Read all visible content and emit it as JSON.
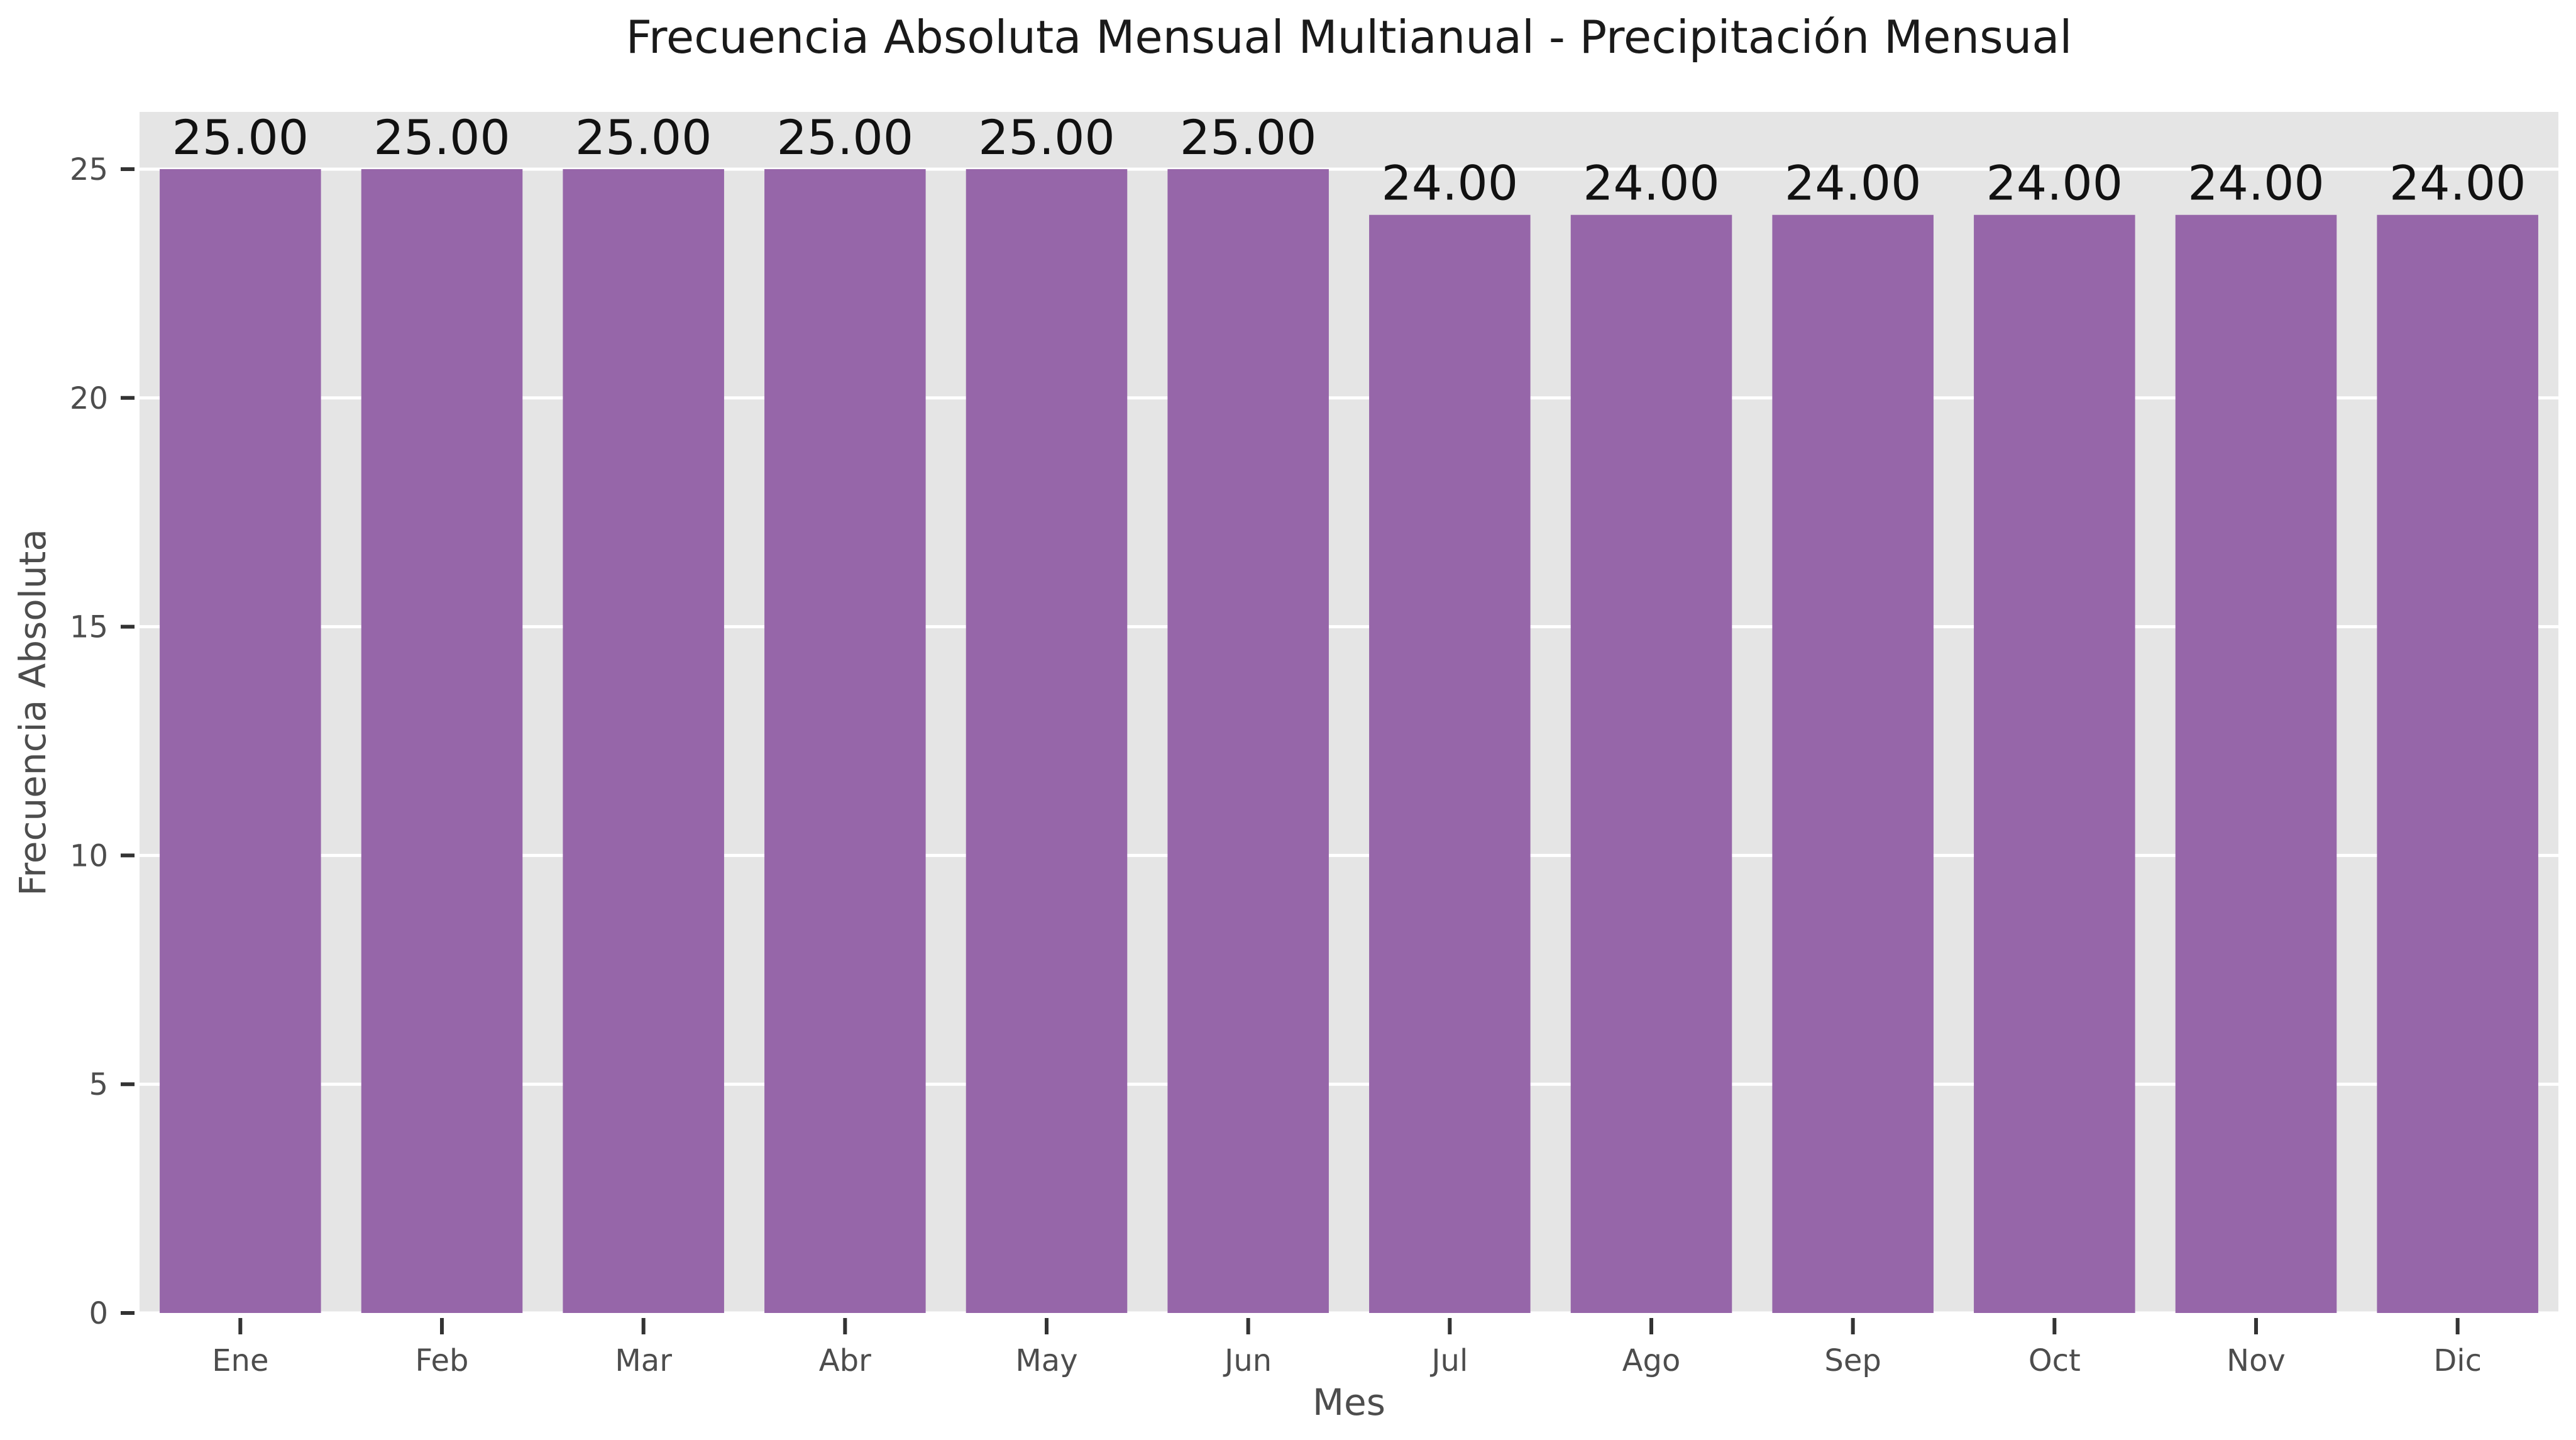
{
  "chart_data": {
    "type": "bar",
    "title": "Frecuencia Absoluta Mensual Multianual - Precipitación Mensual",
    "xlabel": "Mes",
    "ylabel": "Frecuencia Absoluta",
    "categories": [
      "Ene",
      "Feb",
      "Mar",
      "Abr",
      "May",
      "Jun",
      "Jul",
      "Ago",
      "Sep",
      "Oct",
      "Nov",
      "Dic"
    ],
    "values": [
      25,
      25,
      25,
      25,
      25,
      25,
      24,
      24,
      24,
      24,
      24,
      24
    ],
    "data_labels": [
      "25.00",
      "25.00",
      "25.00",
      "25.00",
      "25.00",
      "25.00",
      "24.00",
      "24.00",
      "24.00",
      "24.00",
      "24.00",
      "24.00"
    ],
    "ylim": [
      0,
      26.25
    ],
    "yticks": [
      0,
      5,
      10,
      15,
      20,
      25
    ],
    "grid": true,
    "colors": {
      "bar": "#9666A9",
      "background": "#E5E5E5",
      "grid": "#FFFFFF"
    }
  }
}
